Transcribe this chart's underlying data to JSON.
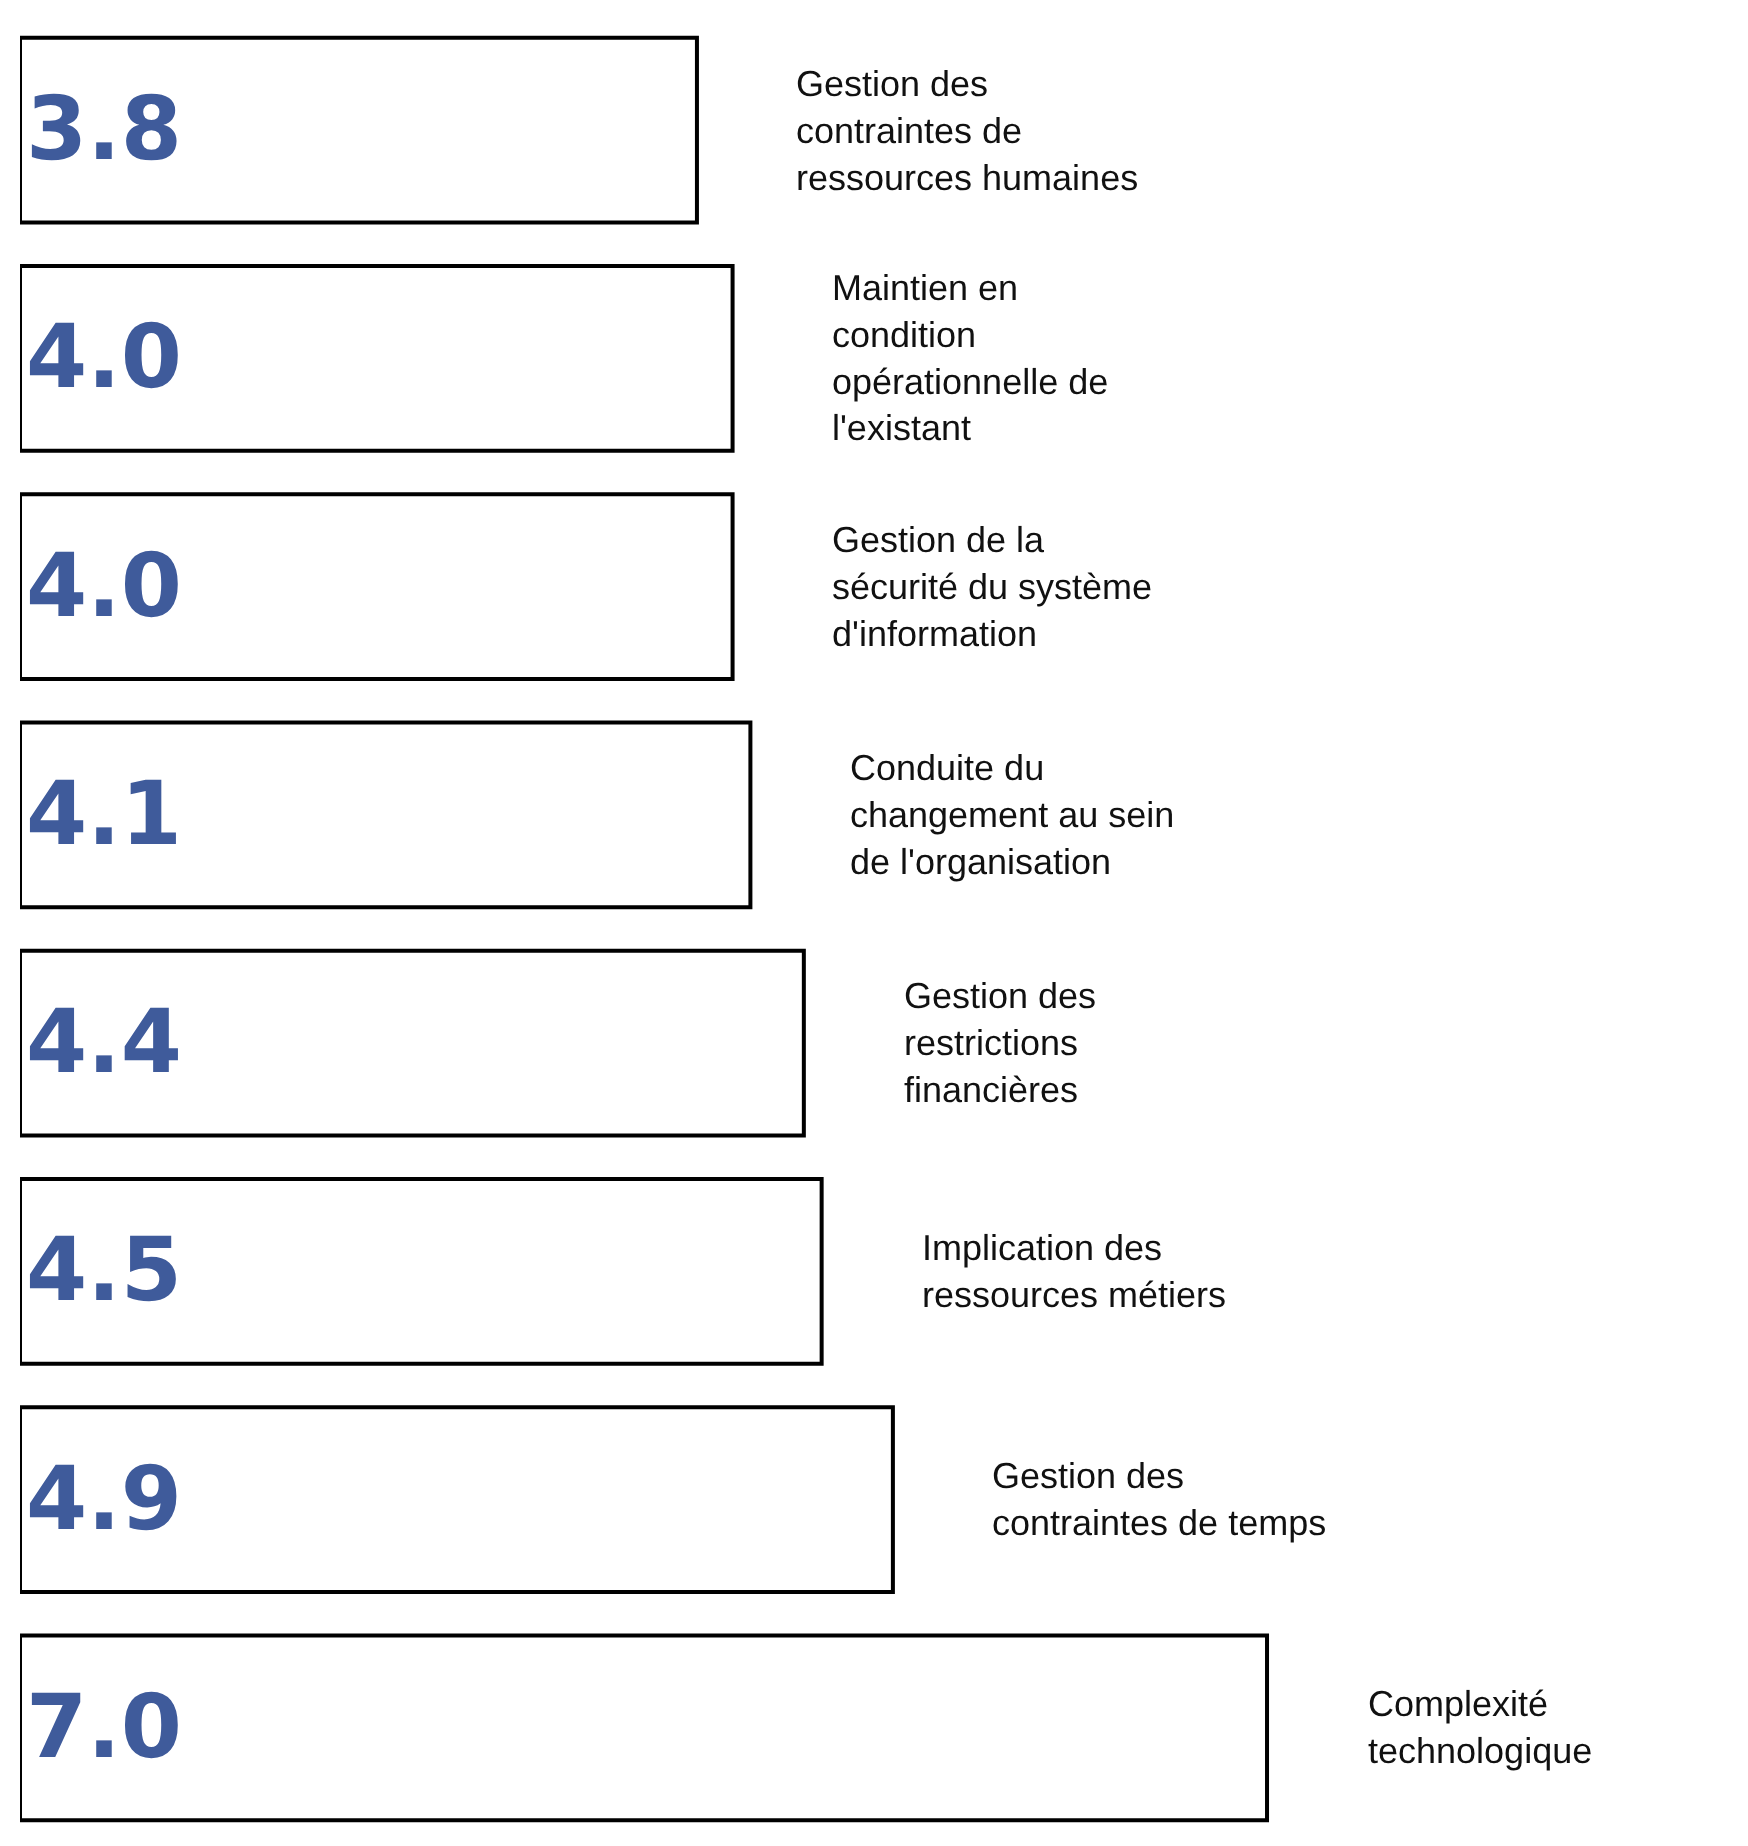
{
  "chart_data": {
    "type": "bar",
    "orientation": "horizontal",
    "categories": [
      "Gestion des contraintes de ressources humaines",
      "Maintien en condition opérationnelle de l'existant",
      "Gestion de la sécurité du système d'information",
      "Conduite du changement au sein de l'organisation",
      "Gestion des restrictions financières",
      "Implication des ressources métiers",
      "Gestion des contraintes de temps",
      "Complexité technologique"
    ],
    "values": [
      3.8,
      4.0,
      4.0,
      4.1,
      4.4,
      4.5,
      4.9,
      7.0
    ],
    "value_labels": [
      "3.8",
      "4.0",
      "4.0",
      "4.1",
      "4.4",
      "4.5",
      "4.9",
      "7.0"
    ],
    "xlim": [
      0,
      9.7
    ],
    "color": "#ffffff"
  }
}
